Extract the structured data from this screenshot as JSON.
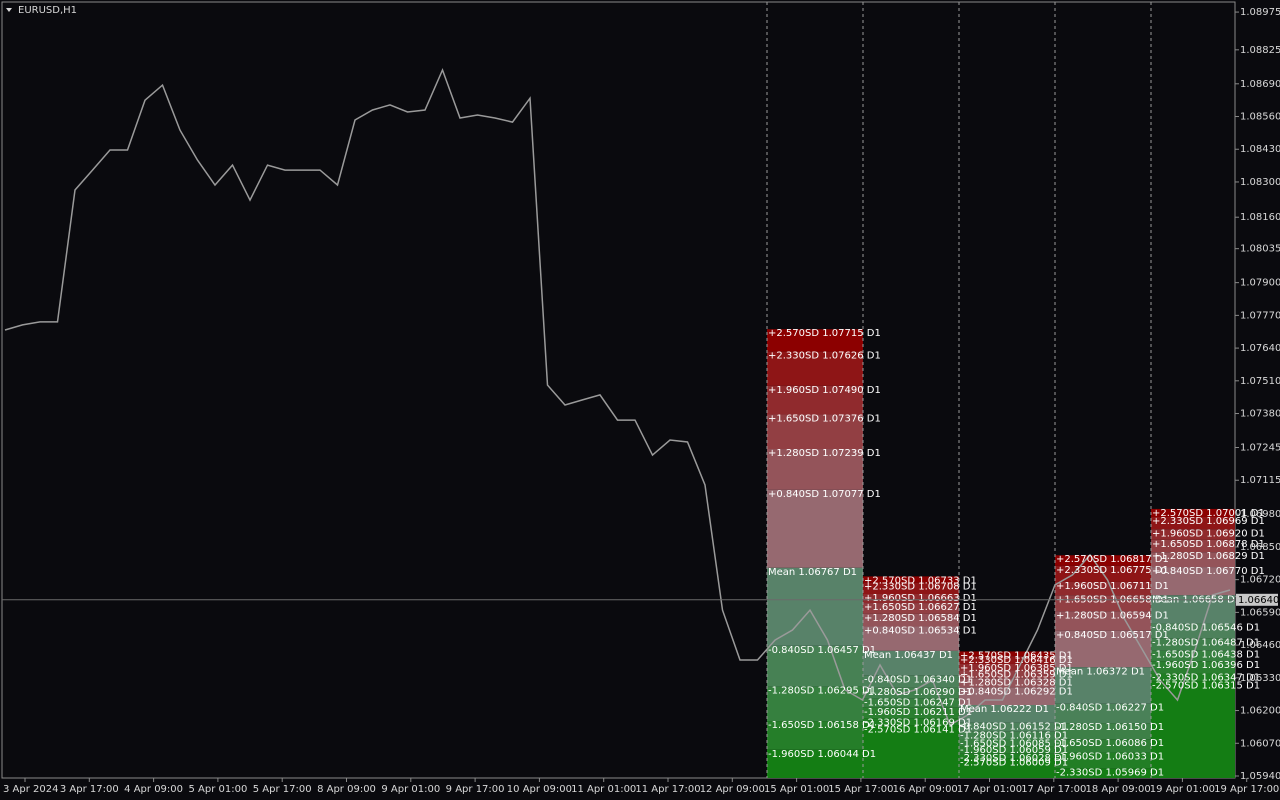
{
  "chart_data": {
    "type": "line",
    "title": "EURUSD,H1",
    "color": "#9a9a9a",
    "values": [
      1.07712,
      1.07732,
      1.07744,
      1.07744,
      1.08268,
      1.08347,
      1.08427,
      1.08427,
      1.08625,
      1.08685,
      1.08506,
      1.08387,
      1.08288,
      1.08367,
      1.08228,
      1.08367,
      1.08347,
      1.08347,
      1.08347,
      1.08288,
      1.08546,
      1.08586,
      1.08606,
      1.08578,
      1.08586,
      1.08745,
      1.08554,
      1.08566,
      1.08554,
      1.08538,
      1.08633,
      1.07493,
      1.07414,
      1.07434,
      1.07454,
      1.07354,
      1.07354,
      1.07215,
      1.07275,
      1.07267,
      1.07096,
      1.06599,
      1.06401,
      1.06401,
      1.0648,
      1.0652,
      1.06599,
      1.0648,
      1.06282,
      1.06242,
      1.06381,
      1.06262,
      1.06282,
      1.06321,
      1.06143,
      1.06182,
      1.06242,
      1.06242,
      1.06381,
      1.0652,
      1.06699,
      1.06739,
      1.06818,
      1.06719,
      1.0656,
      1.06441,
      1.06321,
      1.06242,
      1.06441,
      1.06659,
      1.06679
    ],
    "ylim": [
      1.05932,
      1.09015
    ],
    "yticks": [
      1.08975,
      1.08825,
      {
        "value": 1.0869,
        "label": "1.08690"
      },
      {
        "value": 1.0856,
        "label": "1.08560"
      },
      {
        "value": 1.0843,
        "label": "1.08430"
      },
      {
        "value": 1.083,
        "label": "1.08300"
      },
      {
        "value": 1.0816,
        "label": "1.08160"
      },
      1.08035,
      {
        "value": 1.079,
        "label": "1.07900"
      },
      {
        "value": 1.0777,
        "label": "1.07770"
      },
      {
        "value": 1.0764,
        "label": "1.07640"
      },
      {
        "value": 1.0751,
        "label": "1.07510"
      },
      {
        "value": 1.0738,
        "label": "1.07380"
      },
      1.07245,
      1.07115,
      {
        "value": 1.0698,
        "label": "1.06980"
      },
      {
        "value": 1.0685,
        "label": "1.06850"
      },
      {
        "value": 1.0672,
        "label": "1.06720"
      },
      {
        "value": 1.0659,
        "label": "1.06590"
      },
      {
        "value": 1.0646,
        "label": "1.06460"
      },
      {
        "value": 1.0633,
        "label": "1.06330"
      },
      {
        "value": 1.062,
        "label": "1.06200"
      },
      {
        "value": 1.0607,
        "label": "1.06070"
      },
      {
        "value": 1.0594,
        "label": "1.05940"
      }
    ],
    "time_labels": [
      "3 Apr 2024",
      "3 Apr 17:00",
      "4 Apr 09:00",
      "5 Apr 01:00",
      "5 Apr 17:00",
      "8 Apr 09:00",
      "9 Apr 01:00",
      "9 Apr 17:00",
      "10 Apr 09:00",
      "11 Apr 01:00",
      "11 Apr 17:00",
      "12 Apr 09:00",
      "15 Apr 01:00",
      "15 Apr 17:00",
      "16 Apr 09:00",
      "17 Apr 01:00",
      "17 Apr 17:00",
      "18 Apr 09:00",
      "19 Apr 01:00",
      "19 Apr 17:00"
    ],
    "current_price": {
      "value": 1.0664,
      "label": "1.06640"
    },
    "zones": [
      {
        "levels": [
          {
            "label": "+2.570SD 1.07715 D1",
            "value": 1.07715
          },
          {
            "label": "+2.330SD 1.07626 D1",
            "value": 1.07626
          },
          {
            "label": "+1.960SD 1.07490 D1",
            "value": 1.0749
          },
          {
            "label": "+1.650SD 1.07376 D1",
            "value": 1.07376
          },
          {
            "label": "+1.280SD 1.07239 D1",
            "value": 1.07239
          },
          {
            "label": "+0.840SD 1.07077 D1",
            "value": 1.07077
          },
          {
            "label": "Mean 1.06767 D1",
            "value": 1.06767
          },
          {
            "label": "-0.840SD 1.06457 D1",
            "value": 1.06457
          },
          {
            "label": "-1.280SD 1.06295 D1",
            "value": 1.06295
          },
          {
            "label": "-1.650SD 1.06158 D1",
            "value": 1.06158
          },
          {
            "label": "-1.960SD 1.06044 D1",
            "value": 1.06044
          }
        ]
      },
      {
        "levels": [
          {
            "label": "+2.570SD 1.06733 D1",
            "value": 1.06733
          },
          {
            "label": "+2.330SD 1.06708 D1",
            "value": 1.06708
          },
          {
            "label": "+1.960SD 1.06663 D1",
            "value": 1.06663
          },
          {
            "label": "+1.650SD 1.06627 D1",
            "value": 1.06627
          },
          {
            "label": "+1.280SD 1.06584 D1",
            "value": 1.06584
          },
          {
            "label": "+0.840SD 1.06534 D1",
            "value": 1.06534
          },
          {
            "label": "Mean 1.06437 D1",
            "value": 1.06437
          },
          {
            "label": "-0.840SD 1.06340 D1",
            "value": 1.0634
          },
          {
            "label": "-1.280SD 1.06290 D1",
            "value": 1.0629
          },
          {
            "label": "-1.650SD 1.06247 D1",
            "value": 1.06247
          },
          {
            "label": "-1.960SD 1.06211 D1",
            "value": 1.06211
          },
          {
            "label": "-2.330SD 1.06169 D1",
            "value": 1.06169
          },
          {
            "label": "-2.570SD 1.06141 D1",
            "value": 1.06141
          }
        ]
      },
      {
        "levels": [
          {
            "label": "+2.570SD 1.06435 D1",
            "value": 1.06435
          },
          {
            "label": "+2.330SD 1.06416 D1",
            "value": 1.06416
          },
          {
            "label": "+1.960SD 1.06385 D1",
            "value": 1.06385
          },
          {
            "label": "+1.650SD 1.06359 D1",
            "value": 1.06359
          },
          {
            "label": "+1.280SD 1.06328 D1",
            "value": 1.06328
          },
          {
            "label": "+0.840SD 1.06292 D1",
            "value": 1.06292
          },
          {
            "label": "Mean 1.06222 D1",
            "value": 1.06222
          },
          {
            "label": "-0.840SD 1.06152 D1",
            "value": 1.06152
          },
          {
            "label": "-1.280SD 1.06116 D1",
            "value": 1.06116
          },
          {
            "label": "-1.650SD 1.06085 D1",
            "value": 1.06085
          },
          {
            "label": "-1.960SD 1.06059 D1",
            "value": 1.06059
          },
          {
            "label": "-2.330SD 1.06028 D1",
            "value": 1.06028
          },
          {
            "label": "-2.570SD 1.06009 D1",
            "value": 1.06009
          }
        ]
      },
      {
        "levels": [
          {
            "label": "+2.570SD 1.06817 D1",
            "value": 1.06817
          },
          {
            "label": "+2.330SD 1.06775 D1",
            "value": 1.06775
          },
          {
            "label": "+1.960SD 1.06711 D1",
            "value": 1.06711
          },
          {
            "label": "+1.650SD 1.06658 D1",
            "value": 1.06658
          },
          {
            "label": "+1.280SD 1.06594 D1",
            "value": 1.06594
          },
          {
            "label": "+0.840SD 1.06517 D1",
            "value": 1.06517
          },
          {
            "label": "Mean 1.06372 D1",
            "value": 1.06372
          },
          {
            "label": "-0.840SD 1.06227 D1",
            "value": 1.06227
          },
          {
            "label": "-1.280SD 1.06150 D1",
            "value": 1.0615
          },
          {
            "label": "-1.650SD 1.06086 D1",
            "value": 1.06086
          },
          {
            "label": "-1.960SD 1.06033 D1",
            "value": 1.06033
          },
          {
            "label": "-2.330SD 1.05969 D1",
            "value": 1.05969
          }
        ]
      },
      {
        "levels": [
          {
            "label": "+2.570SD 1.07001 D1",
            "value": 1.07001
          },
          {
            "label": "+2.330SD 1.06969 D1",
            "value": 1.06969
          },
          {
            "label": "+1.960SD 1.06920 D1",
            "value": 1.0692
          },
          {
            "label": "+1.650SD 1.06878 D1",
            "value": 1.06878
          },
          {
            "label": "+1.280SD 1.06829 D1",
            "value": 1.06829
          },
          {
            "label": "+0.840SD 1.06770 D1",
            "value": 1.0677
          },
          {
            "label": "Mean 1.06658 D1",
            "value": 1.06658
          },
          {
            "label": "-0.840SD 1.06546 D1",
            "value": 1.06546
          },
          {
            "label": "-1.280SD 1.06487 D1",
            "value": 1.06487
          },
          {
            "label": "-1.650SD 1.06438 D1",
            "value": 1.06438
          },
          {
            "label": "-1.960SD 1.06396 D1",
            "value": 1.06396
          },
          {
            "label": "-2.330SD 1.06347 D1",
            "value": 1.06347
          },
          {
            "label": "-2.570SD 1.06315 D1",
            "value": 1.06315
          }
        ]
      }
    ]
  }
}
